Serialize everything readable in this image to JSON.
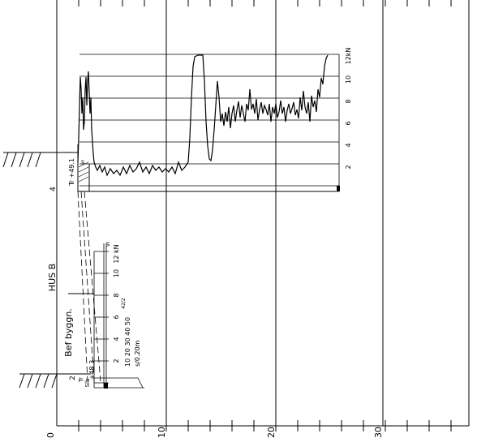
{
  "profile_top": {
    "hole_number": "4",
    "level_label": "Tr +49.1",
    "tick_labels": [
      "2",
      "4",
      "6",
      "8",
      "10",
      "12kN"
    ]
  },
  "profile_bottom": {
    "hole_number": "2",
    "level_label": "+48.3",
    "soil_labels": [
      "Tr",
      "Slb"
    ],
    "force_ticks": [
      "2",
      "4",
      "6",
      "8",
      "10",
      "12 kN"
    ],
    "small_scale": "10 20 30 40 50",
    "rate_unit": "s/0.20m",
    "column_tags": [
      "vr",
      "42/2"
    ]
  },
  "annotations": {
    "building_name": "HUS B",
    "existing_building": "Bef byggn."
  },
  "bottom_ticks": [
    "0",
    "10",
    "20",
    "30"
  ]
}
